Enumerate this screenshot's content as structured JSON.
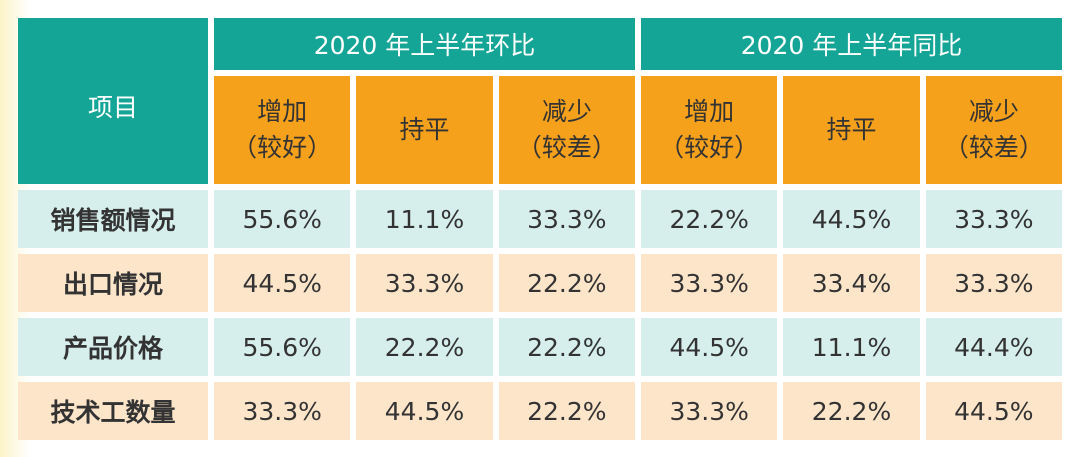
{
  "header": {
    "item": "项目",
    "groups": [
      "2020 年上半年环比",
      "2020 年上半年同比"
    ],
    "subheaders": [
      [
        "增加",
        "（较好）"
      ],
      [
        "持平"
      ],
      [
        "减少",
        "（较差）"
      ],
      [
        "增加",
        "（较好）"
      ],
      [
        "持平"
      ],
      [
        "减少",
        "（较差）"
      ]
    ]
  },
  "table": {
    "rows": [
      [
        "销售额情况",
        "55.6%",
        "11.1%",
        "33.3%",
        "22.2%",
        "44.5%",
        "33.3%"
      ],
      [
        "出口情况",
        "44.5%",
        "33.3%",
        "22.2%",
        "33.3%",
        "33.4%",
        "33.3%"
      ],
      [
        "产品价格",
        "55.6%",
        "22.2%",
        "22.2%",
        "44.5%",
        "11.1%",
        "44.4%"
      ],
      [
        "技术工数量",
        "33.3%",
        "44.5%",
        "22.2%",
        "33.3%",
        "22.2%",
        "44.5%"
      ]
    ]
  }
}
